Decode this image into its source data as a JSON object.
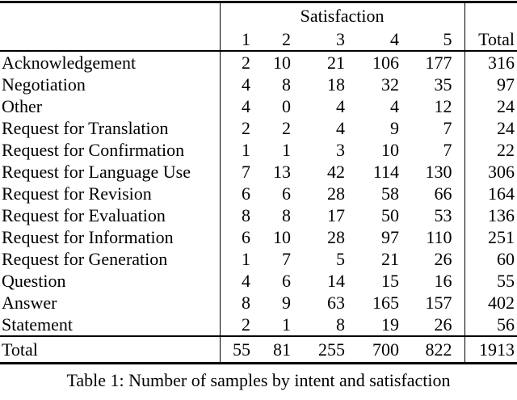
{
  "colors": {
    "background": "#ffffff",
    "text": "#000000",
    "rule": "#000000"
  },
  "table": {
    "header": {
      "group_label": "Satisfaction",
      "columns": [
        "1",
        "2",
        "3",
        "4",
        "5"
      ],
      "total_label": "Total"
    },
    "rows": [
      {
        "label": "Acknowledgement",
        "values": [
          "2",
          "10",
          "21",
          "106",
          "177"
        ],
        "total": "316"
      },
      {
        "label": "Negotiation",
        "values": [
          "4",
          "8",
          "18",
          "32",
          "35"
        ],
        "total": "97"
      },
      {
        "label": "Other",
        "values": [
          "4",
          "0",
          "4",
          "4",
          "12"
        ],
        "total": "24"
      },
      {
        "label": "Request for Translation",
        "values": [
          "2",
          "2",
          "4",
          "9",
          "7"
        ],
        "total": "24"
      },
      {
        "label": "Request for Confirmation",
        "values": [
          "1",
          "1",
          "3",
          "10",
          "7"
        ],
        "total": "22"
      },
      {
        "label": "Request for Language Use",
        "values": [
          "7",
          "13",
          "42",
          "114",
          "130"
        ],
        "total": "306"
      },
      {
        "label": "Request for Revision",
        "values": [
          "6",
          "6",
          "28",
          "58",
          "66"
        ],
        "total": "164"
      },
      {
        "label": "Request for Evaluation",
        "values": [
          "8",
          "8",
          "17",
          "50",
          "53"
        ],
        "total": "136"
      },
      {
        "label": "Request for Information",
        "values": [
          "6",
          "10",
          "28",
          "97",
          "110"
        ],
        "total": "251"
      },
      {
        "label": "Request for Generation",
        "values": [
          "1",
          "7",
          "5",
          "21",
          "26"
        ],
        "total": "60"
      },
      {
        "label": "Question",
        "values": [
          "4",
          "6",
          "14",
          "15",
          "16"
        ],
        "total": "55"
      },
      {
        "label": "Answer",
        "values": [
          "8",
          "9",
          "63",
          "165",
          "157"
        ],
        "total": "402"
      },
      {
        "label": "Statement",
        "values": [
          "2",
          "1",
          "8",
          "19",
          "26"
        ],
        "total": "56"
      }
    ],
    "footer": {
      "label": "Total",
      "values": [
        "55",
        "81",
        "255",
        "700",
        "822"
      ],
      "total": "1913"
    }
  },
  "caption": "Table 1: Number of samples by intent and satisfaction"
}
